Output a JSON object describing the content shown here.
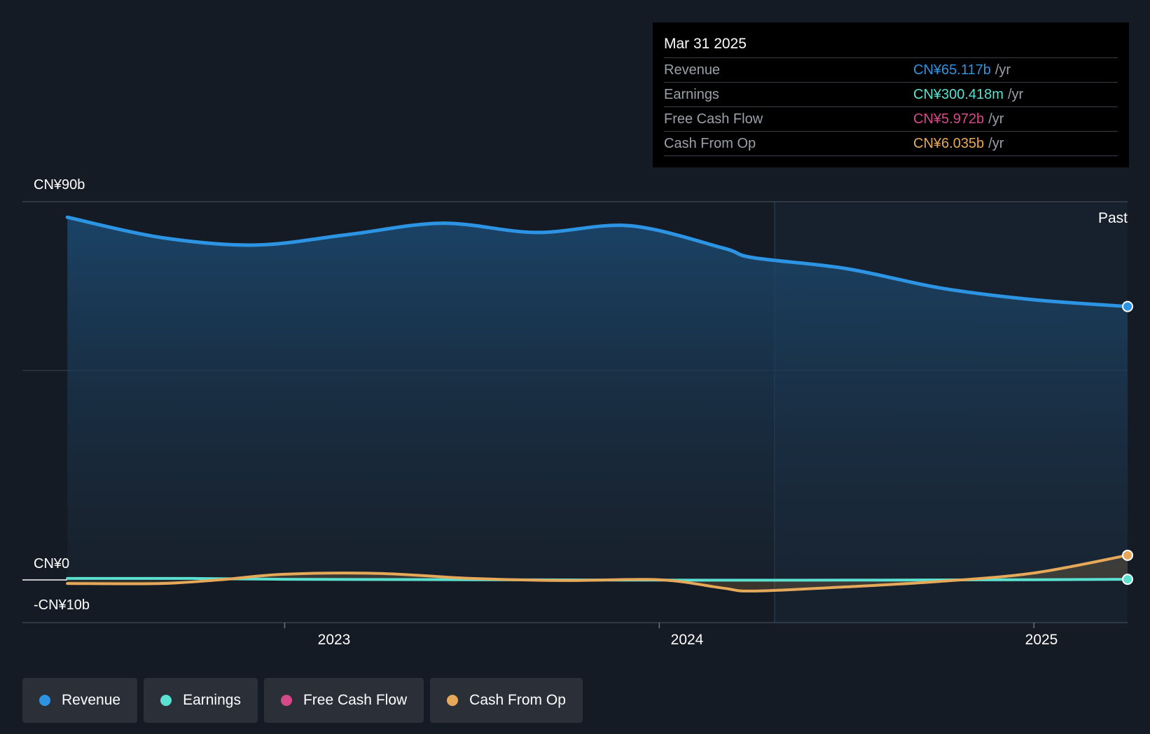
{
  "colors": {
    "revenue": "#2d94e3",
    "earnings": "#5ce0d0",
    "free_cash_flow": "#d64a8a",
    "cash_from_op": "#e6a95a",
    "background": "#151b24"
  },
  "tooltip": {
    "date": "Mar 31 2025",
    "rows": [
      {
        "label": "Revenue",
        "value": "CN¥65.117b",
        "unit": "/yr"
      },
      {
        "label": "Earnings",
        "value": "CN¥300.418m",
        "unit": "/yr"
      },
      {
        "label": "Free Cash Flow",
        "value": "CN¥5.972b",
        "unit": "/yr"
      },
      {
        "label": "Cash From Op",
        "value": "CN¥6.035b",
        "unit": "/yr"
      }
    ]
  },
  "past_label": "Past",
  "legend": [
    {
      "label": "Revenue",
      "color_key": "revenue"
    },
    {
      "label": "Earnings",
      "color_key": "earnings"
    },
    {
      "label": "Free Cash Flow",
      "color_key": "free_cash_flow"
    },
    {
      "label": "Cash From Op",
      "color_key": "cash_from_op"
    }
  ],
  "chart_data": {
    "type": "area",
    "y_unit": "CN¥ billions",
    "ylim": [
      -10,
      90
    ],
    "y_tick_labels": [
      "CN¥90b",
      "CN¥0",
      "-CN¥10b"
    ],
    "x_tick_labels": [
      "2023",
      "2024",
      "2025"
    ],
    "xlim": [
      2022.3,
      2025.25
    ],
    "grid": true,
    "series": [
      {
        "name": "Revenue",
        "color_key": "revenue",
        "x": [
          2022.42,
          2022.67,
          2022.92,
          2023.17,
          2023.42,
          2023.67,
          2023.92,
          2024.17,
          2024.25,
          2024.5,
          2024.75,
          2025.0,
          2025.25
        ],
        "values": [
          86.3,
          81.5,
          79.7,
          82.2,
          84.9,
          82.7,
          84.3,
          79.0,
          76.7,
          74.1,
          69.5,
          66.7,
          65.1
        ]
      },
      {
        "name": "Earnings",
        "color_key": "earnings",
        "x": [
          2022.42,
          2022.75,
          2023.0,
          2023.5,
          2024.0,
          2024.5,
          2025.0,
          2025.25
        ],
        "values": [
          0.5,
          0.5,
          0.3,
          0.2,
          0.1,
          0.1,
          0.2,
          0.3
        ]
      },
      {
        "name": "Cash From Op",
        "color_key": "cash_from_op",
        "x": [
          2022.42,
          2022.67,
          2022.83,
          2023.0,
          2023.25,
          2023.5,
          2023.75,
          2024.0,
          2024.17,
          2024.25,
          2024.5,
          2024.75,
          2025.0,
          2025.25
        ],
        "values": [
          -0.7,
          -0.7,
          0.2,
          1.5,
          1.7,
          0.5,
          0.0,
          0.2,
          -1.8,
          -2.5,
          -1.5,
          -0.2,
          1.8,
          6.0
        ]
      }
    ]
  }
}
